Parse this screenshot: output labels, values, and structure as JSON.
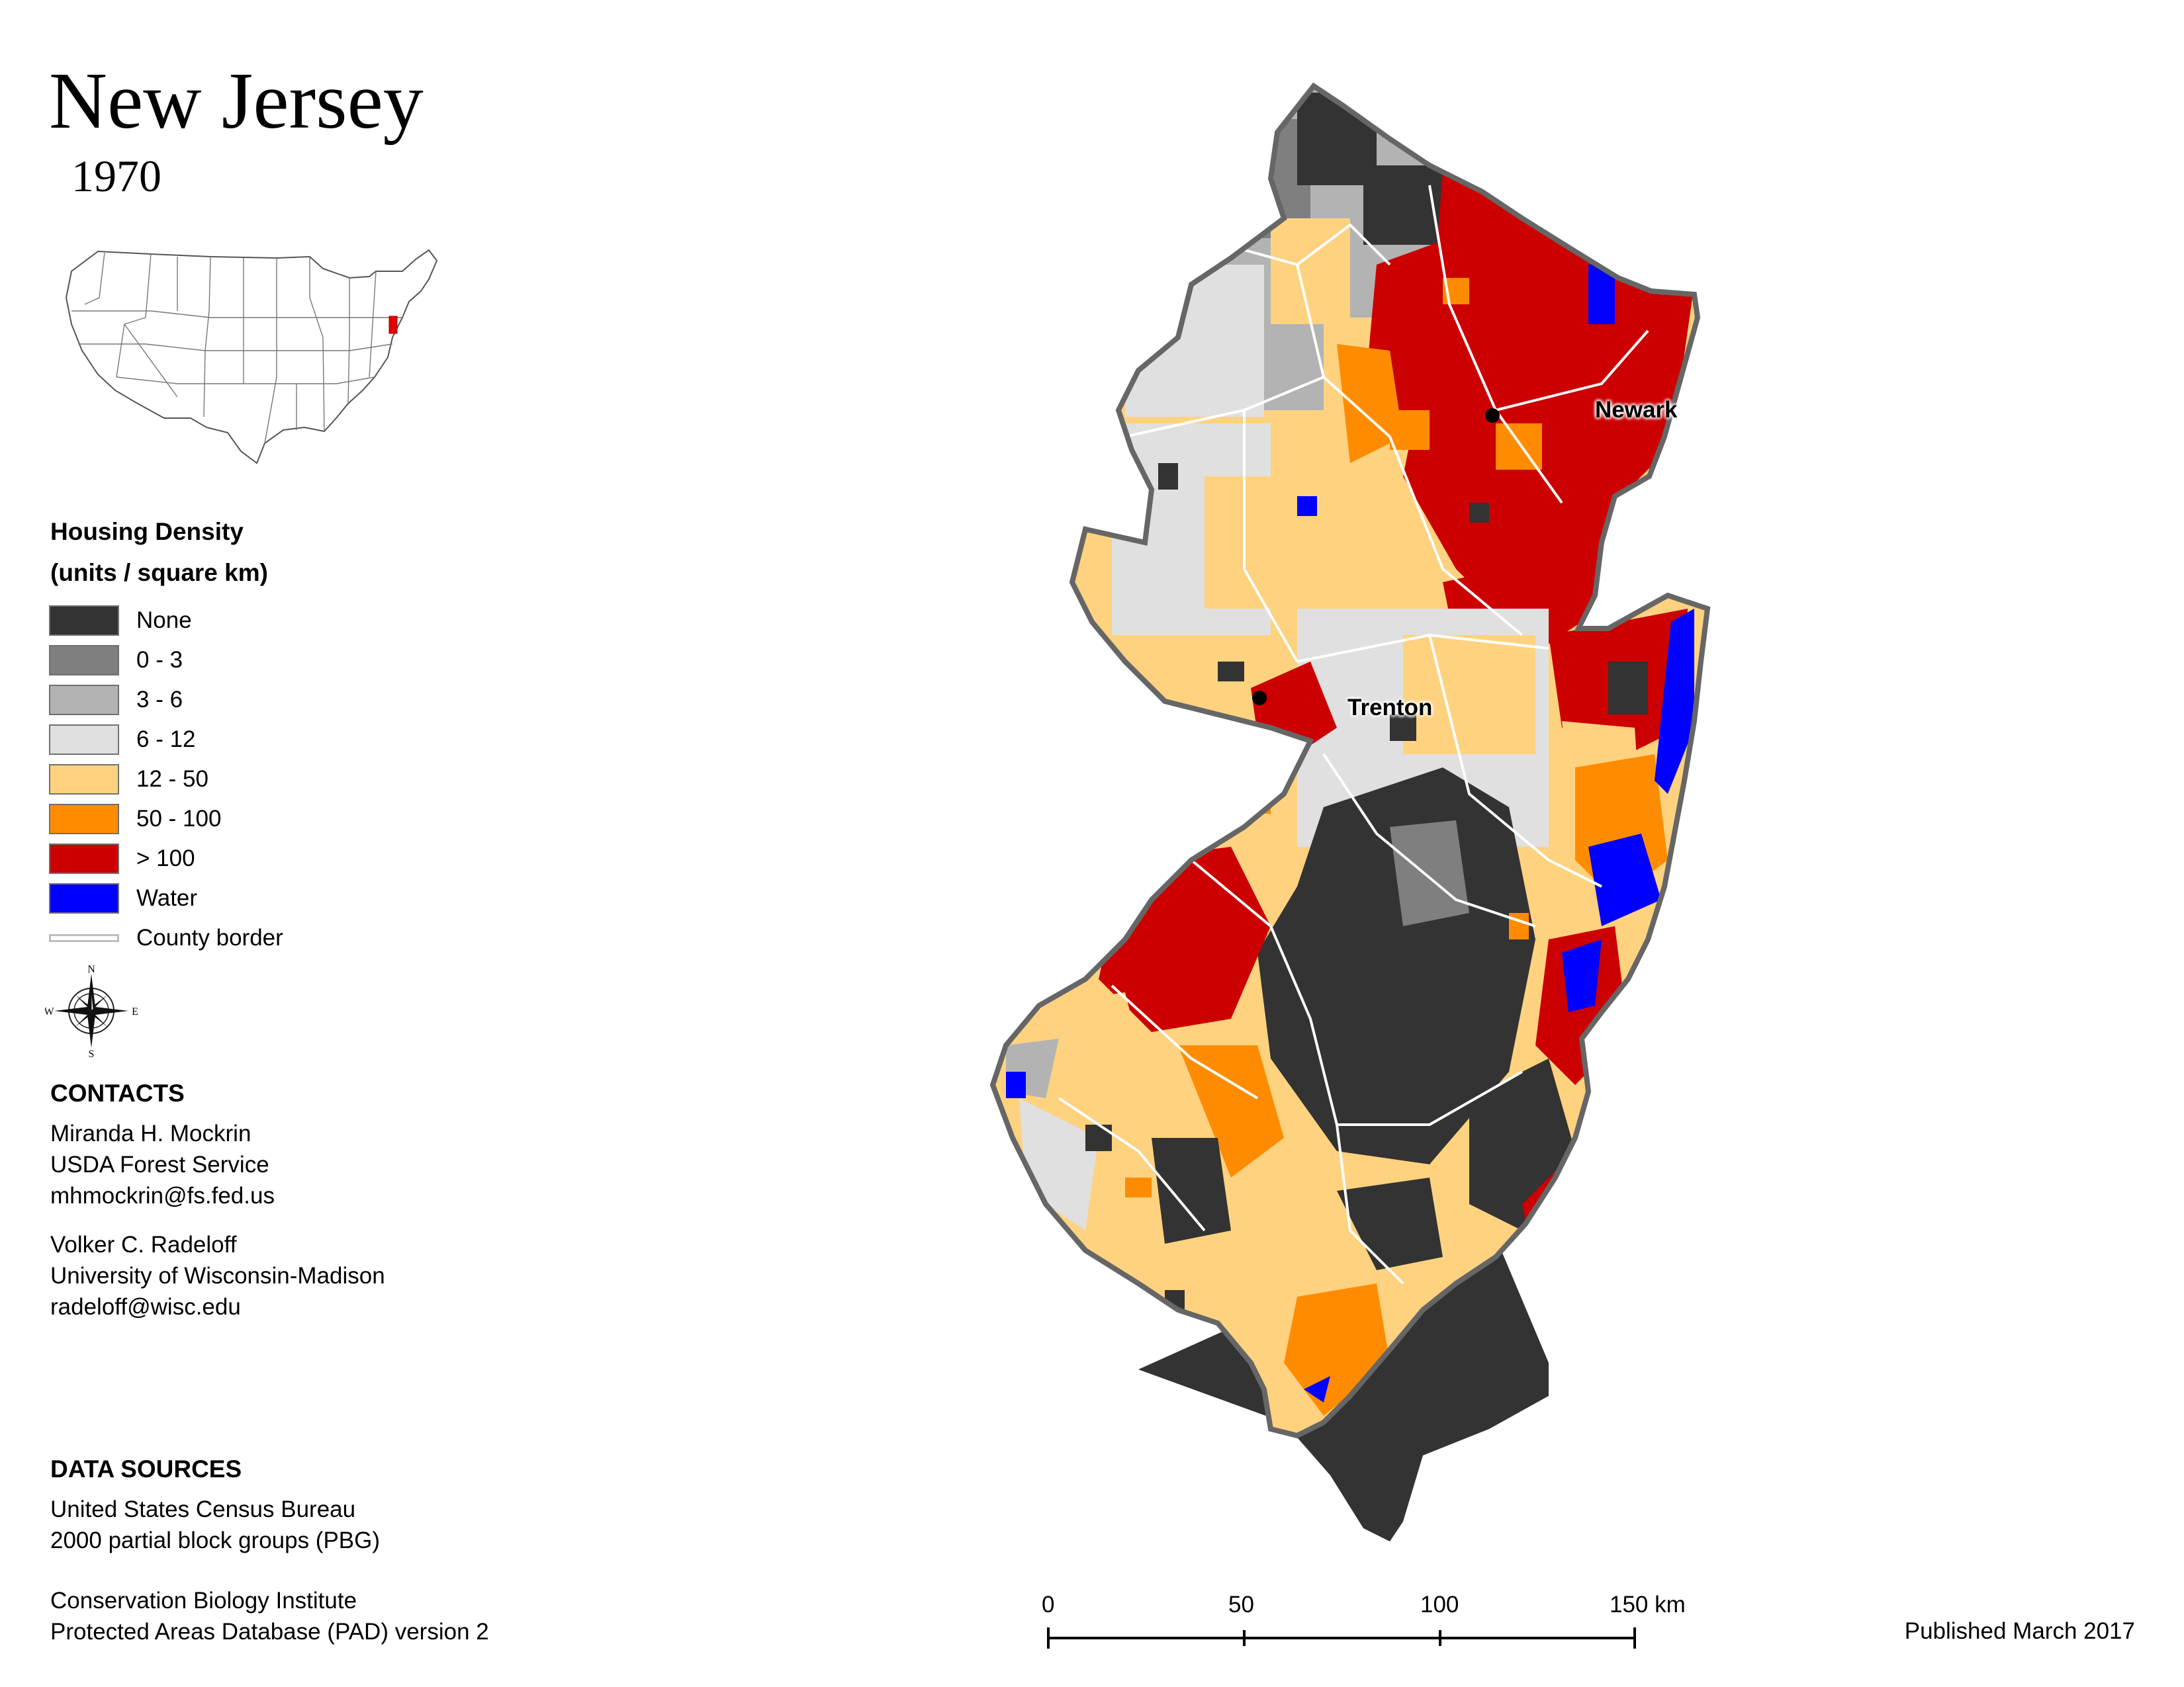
{
  "map": {
    "title": "New Jersey",
    "year": "1970"
  },
  "legend": {
    "title_line1": "Housing Density",
    "title_line2": "(units / square km)",
    "classes": [
      {
        "label": "None",
        "color": "#333333"
      },
      {
        "label": "0 - 3",
        "color": "#7f7f7f"
      },
      {
        "label": "3 - 6",
        "color": "#b3b3b3"
      },
      {
        "label": "6 - 12",
        "color": "#e0e0e0"
      },
      {
        "label": "12 - 50",
        "color": "#ffd280"
      },
      {
        "label": "50 - 100",
        "color": "#ff8c00"
      },
      {
        "label": "> 100",
        "color": "#cc0000"
      },
      {
        "label": "Water",
        "color": "#0000ff"
      }
    ],
    "county_border_label": "County border"
  },
  "compass": {
    "n": "N",
    "s": "S",
    "e": "E",
    "w": "W"
  },
  "cities": {
    "newark": "Newark",
    "trenton": "Trenton"
  },
  "contacts": {
    "heading": "CONTACTS",
    "person1": {
      "name": "Miranda H. Mockrin",
      "org": "USDA Forest Service",
      "email": "mhmockrin@fs.fed.us"
    },
    "person2": {
      "name": "Volker C. Radeloff",
      "org": "University of Wisconsin-Madison",
      "email": "radeloff@wisc.edu"
    }
  },
  "data_sources": {
    "heading": "DATA SOURCES",
    "source1_line1": "United States Census Bureau",
    "source1_line2": "2000 partial block groups (PBG)",
    "source2_line1": "Conservation Biology Institute",
    "source2_line2": "Protected Areas Database (PAD) version 2"
  },
  "scale_bar": {
    "labels": [
      "0",
      "50",
      "100",
      "150 km"
    ]
  },
  "published": "Published March 2017"
}
